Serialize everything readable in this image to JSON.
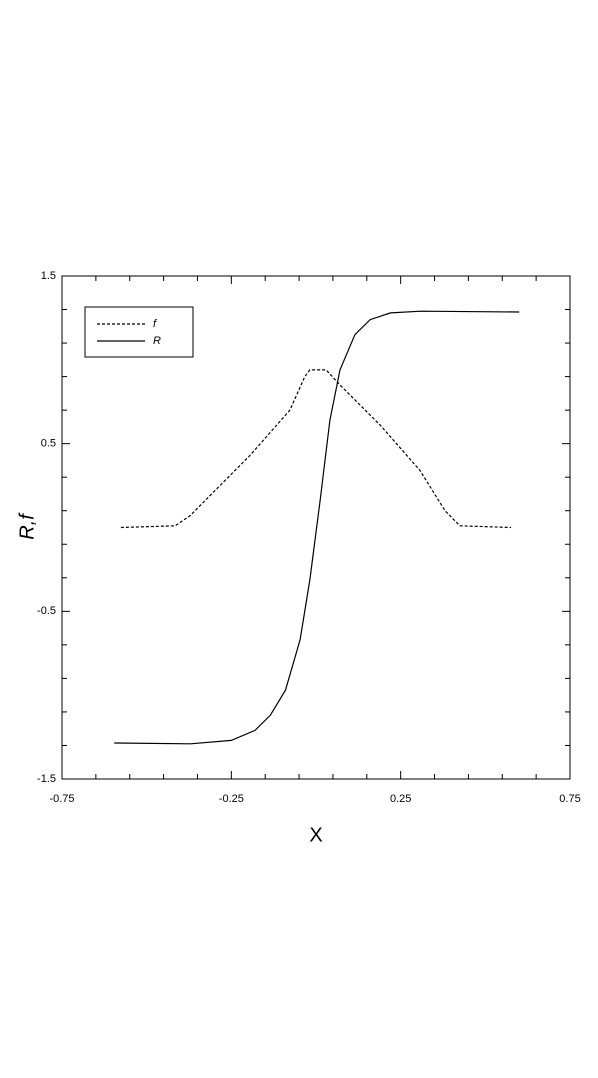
{
  "chart_data": {
    "type": "line",
    "xlabel": "X",
    "ylabel": "R,f",
    "xlim": [
      -0.75,
      0.75
    ],
    "ylim": [
      -1.5,
      1.5
    ],
    "xticks": [
      -0.75,
      -0.25,
      0.25,
      0.75
    ],
    "yticks": [
      1.5,
      0.5,
      -0.5,
      -1.5
    ],
    "xminorticks": [
      -0.65,
      -0.55,
      -0.45,
      -0.35,
      -0.15,
      -0.05,
      0.05,
      0.15,
      0.35,
      0.45,
      0.55,
      0.65
    ],
    "yminorticks": [
      1.3,
      1.1,
      0.9,
      0.7,
      0.3,
      0.1,
      -0.1,
      -0.3,
      -0.7,
      -0.9,
      -1.1,
      -1.3
    ],
    "legend": "upper left",
    "series": [
      {
        "name": "f",
        "color": "#000000",
        "dash": true,
        "x": [
          -0.576,
          -0.416,
          -0.372,
          -0.313,
          -0.195,
          -0.077,
          -0.033,
          -0.018,
          0.03,
          0.071,
          0.19,
          0.307,
          0.381,
          0.425,
          0.576
        ],
        "values": [
          0,
          0.01,
          0.07,
          0.19,
          0.43,
          0.7,
          0.9,
          0.94,
          0.94,
          0.85,
          0.61,
          0.34,
          0.1,
          0.01,
          0
        ]
      },
      {
        "name": "R",
        "color": "#000000",
        "dash": false,
        "x": [
          -0.596,
          -0.37,
          -0.25,
          -0.18,
          -0.135,
          -0.09,
          -0.047,
          -0.018,
          0.012,
          0.041,
          0.071,
          0.115,
          0.16,
          0.22,
          0.31,
          0.6
        ],
        "values": [
          -1.285,
          -1.29,
          -1.27,
          -1.21,
          -1.12,
          -0.97,
          -0.67,
          -0.31,
          0.16,
          0.64,
          0.94,
          1.15,
          1.24,
          1.28,
          1.29,
          1.285
        ]
      }
    ]
  }
}
